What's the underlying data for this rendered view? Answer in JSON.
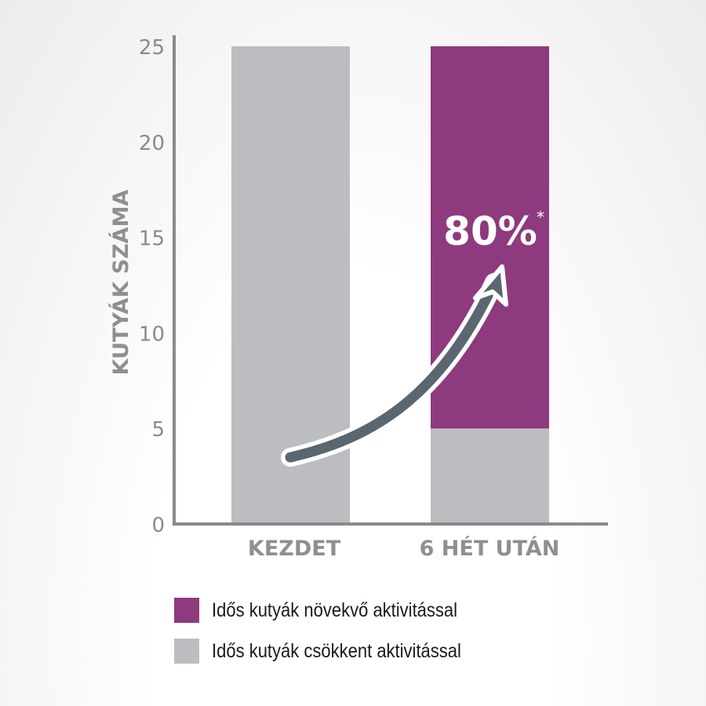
{
  "chart_data": {
    "type": "bar",
    "stacked": true,
    "categories": [
      "KEZDET",
      "6 HÉT UTÁN"
    ],
    "series": [
      {
        "name": "Idős kutyák csökkent aktivitással",
        "values": [
          25,
          5
        ],
        "color": "#bcbdc0"
      },
      {
        "name": "Idős kutyák növekvő aktivitással",
        "values": [
          0,
          20
        ],
        "color": "#8e3a7e"
      }
    ],
    "ylabel": "KUTYÁK SZÁMA",
    "xlabel": "",
    "ylim": [
      0,
      25
    ],
    "yticks": [
      "0",
      "5",
      "10",
      "15",
      "20",
      "25"
    ],
    "annotation": {
      "text": "80%",
      "superscript": "*"
    },
    "arrow_color": "#5a6670",
    "grid": false,
    "legend_placement": "bottom"
  }
}
